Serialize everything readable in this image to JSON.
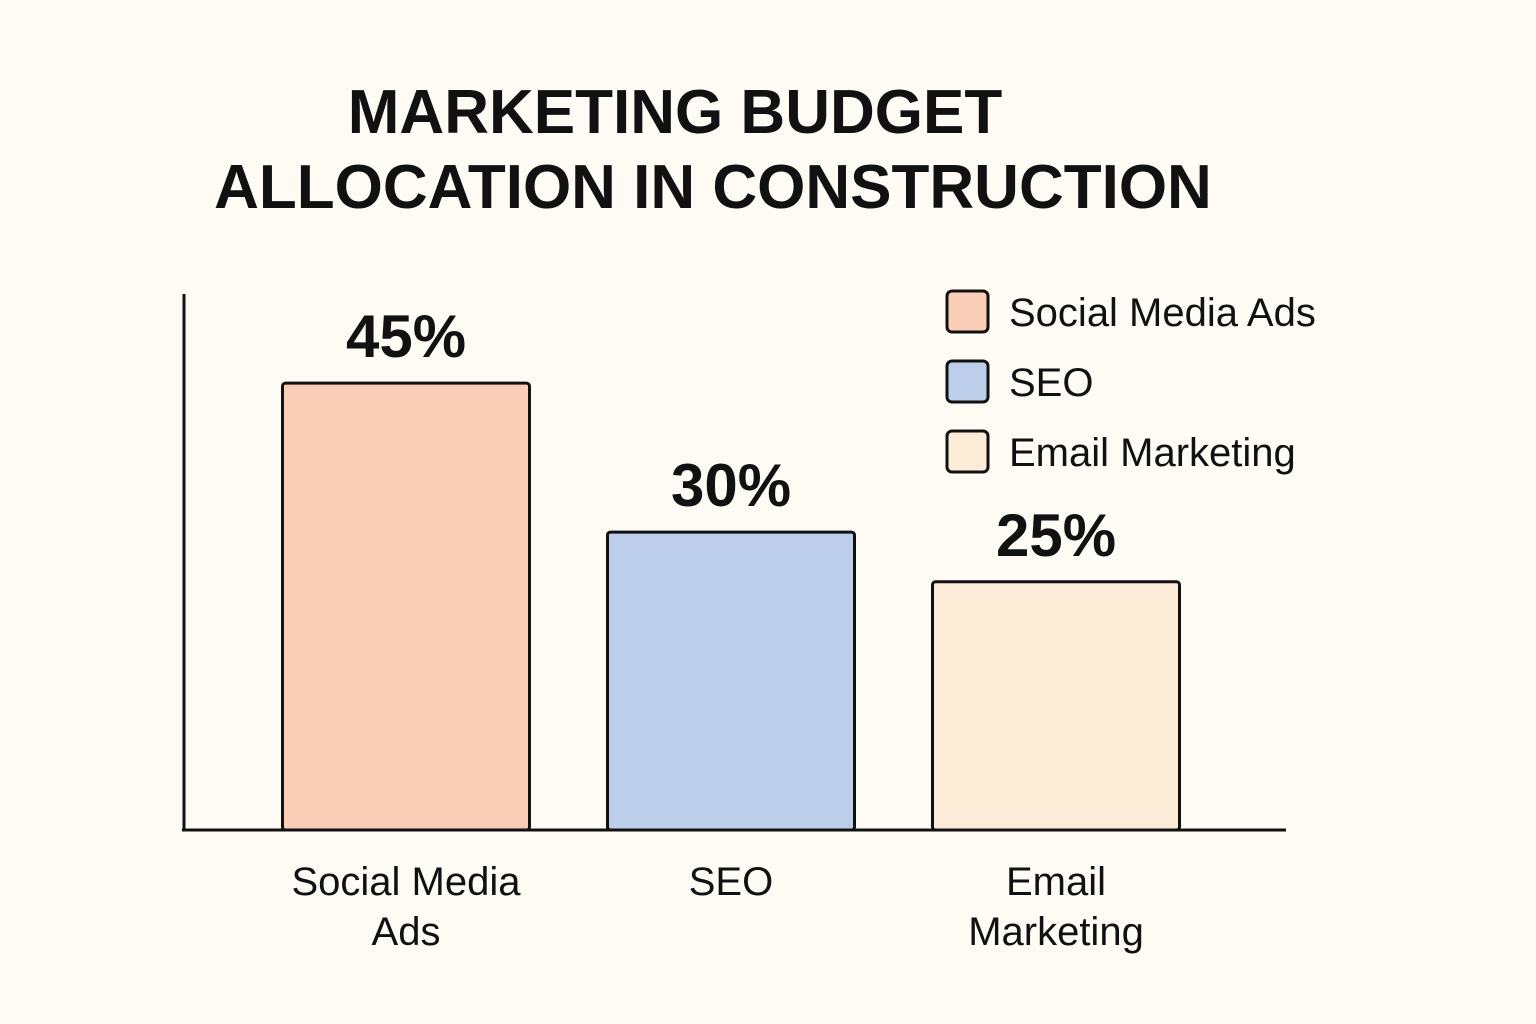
{
  "chart_data": {
    "type": "bar",
    "title_lines": [
      "MARKETING BUDGET",
      "ALLOCATION IN CONSTRUCTION"
    ],
    "categories": [
      "Social Media Ads",
      "SEO",
      "Email Marketing"
    ],
    "category_label_lines": [
      [
        "Social Media",
        "Ads"
      ],
      [
        "SEO"
      ],
      [
        "Email",
        "Marketing"
      ]
    ],
    "values": [
      45,
      30,
      25
    ],
    "value_labels": [
      "45%",
      "30%",
      "25%"
    ],
    "unit": "%",
    "colors": [
      "#f9cdb6",
      "#bccee9",
      "#fcebd6"
    ],
    "xlabel": "",
    "ylabel": "",
    "ylim": [
      0,
      100
    ],
    "grid": false,
    "legend": {
      "position": "top-right",
      "entries": [
        "Social Media Ads",
        "SEO",
        "Email Marketing"
      ]
    }
  }
}
